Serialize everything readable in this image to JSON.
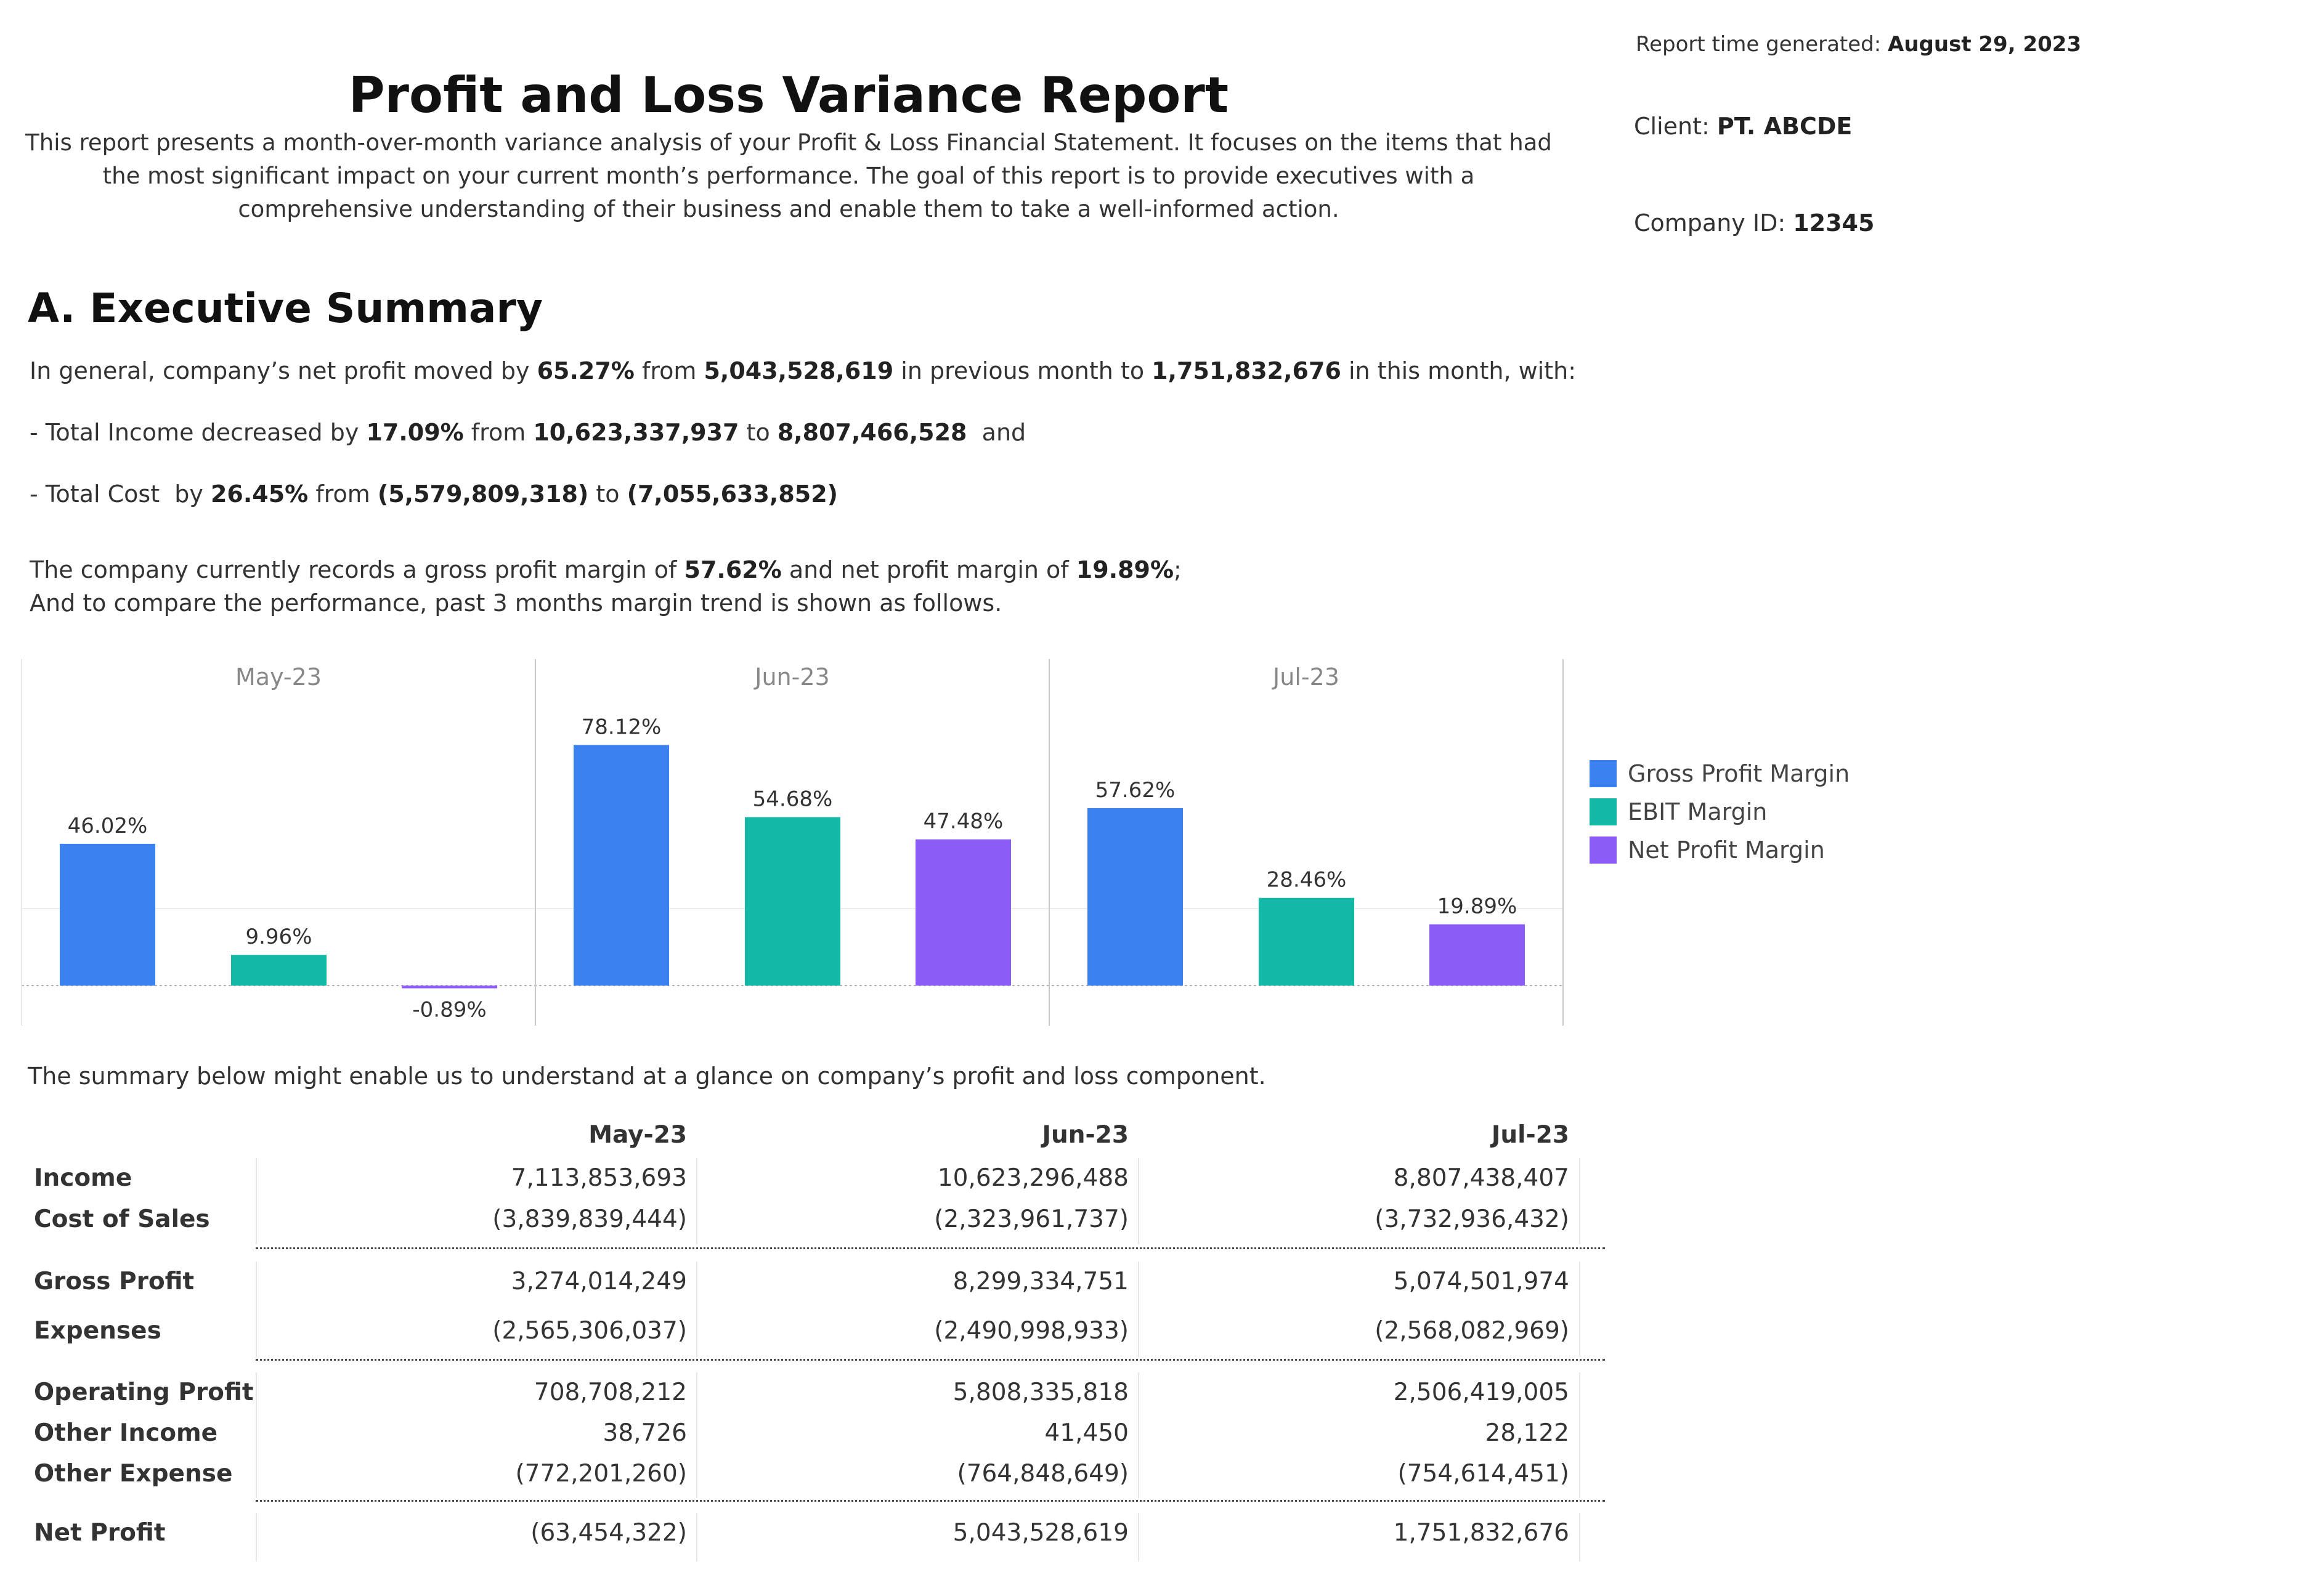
{
  "header": {
    "title": "Profit and Loss Variance Report",
    "description": "This report presents a month-over-month variance analysis of your Profit & Loss Financial Statement. It focuses on the items that had the most significant impact on your current month’s performance. The  goal of this report is to provide executives with a comprehensive understanding of their business and enable them to take a well-informed action."
  },
  "meta": {
    "generated_label": "Report time generated: ",
    "generated_value": "August 29, 2023",
    "client_label": "Client: ",
    "client_value": "PT. ABCDE",
    "company_label": "Company ID: ",
    "company_value": "12345"
  },
  "summary": {
    "heading": "A. Executive Summary",
    "l1_a": "In general, company’s net profit moved by ",
    "l1_b": "65.27%",
    "l1_c": " from ",
    "l1_d": "5,043,528,619",
    "l1_e": " in previous month to ",
    "l1_f": "1,751,832,676",
    "l1_g": " in this month, with:",
    "l2_a": "- Total Income decreased by ",
    "l2_b": "17.09%",
    "l2_c": " from ",
    "l2_d": "10,623,337,937",
    "l2_e": " to ",
    "l2_f": "8,807,466,528",
    "l2_g": "  and",
    "l3_a": "- Total Cost  by ",
    "l3_b": "26.45%",
    "l3_c": " from ",
    "l3_d": "(5,579,809,318)",
    "l3_e": " to ",
    "l3_f": "(7,055,633,852)",
    "l4_a": "The company currently records a gross profit margin of ",
    "l4_b": "57.62%",
    "l4_c": " and net profit margin of ",
    "l4_d": "19.89%",
    "l4_e": ";",
    "l5": "And to compare the performance, past 3 months margin trend is shown as follows."
  },
  "chart_data": {
    "type": "bar",
    "categories": [
      "May-23",
      "Jun-23",
      "Jul-23"
    ],
    "series": [
      {
        "name": "Gross Profit Margin",
        "values": [
          46.02,
          78.12,
          57.62
        ],
        "labels": [
          "46.02%",
          "78.12%",
          "57.62%"
        ],
        "color": "#3B82F0"
      },
      {
        "name": "EBIT Margin",
        "values": [
          9.96,
          54.68,
          28.46
        ],
        "labels": [
          "9.96%",
          "54.68%",
          "28.46%"
        ],
        "color": "#14B8A6"
      },
      {
        "name": "Net Profit Margin",
        "values": [
          -0.89,
          47.48,
          19.89
        ],
        "labels": [
          "-0.89%",
          "47.48%",
          "19.89%"
        ],
        "color": "#8B5CF6"
      }
    ],
    "legend_position": "right",
    "unit": "%"
  },
  "table": {
    "intro": "The summary below might enable us to understand at a glance on company’s profit and loss component.",
    "columns": [
      "May-23",
      "Jun-23",
      "Jul-23"
    ],
    "rows": [
      {
        "label": "Income",
        "values": [
          "7,113,853,693",
          "10,623,296,488",
          "8,807,438,407"
        ]
      },
      {
        "label": "Cost of Sales",
        "values": [
          "(3,839,839,444)",
          "(2,323,961,737)",
          "(3,732,936,432)"
        ]
      },
      {
        "label": "Gross Profit",
        "values": [
          "3,274,014,249",
          "8,299,334,751",
          "5,074,501,974"
        ]
      },
      {
        "label": "Expenses",
        "values": [
          "(2,565,306,037)",
          "(2,490,998,933)",
          "(2,568,082,969)"
        ]
      },
      {
        "label": "Operating Profit",
        "values": [
          "708,708,212",
          "5,808,335,818",
          "2,506,419,005"
        ]
      },
      {
        "label": "Other Income",
        "values": [
          "38,726",
          "41,450",
          "28,122"
        ]
      },
      {
        "label": "Other Expense",
        "values": [
          "(772,201,260)",
          "(764,848,649)",
          "(754,614,451)"
        ]
      },
      {
        "label": "Net Profit",
        "values": [
          "(63,454,322)",
          "5,043,528,619",
          "1,751,832,676"
        ]
      }
    ]
  }
}
